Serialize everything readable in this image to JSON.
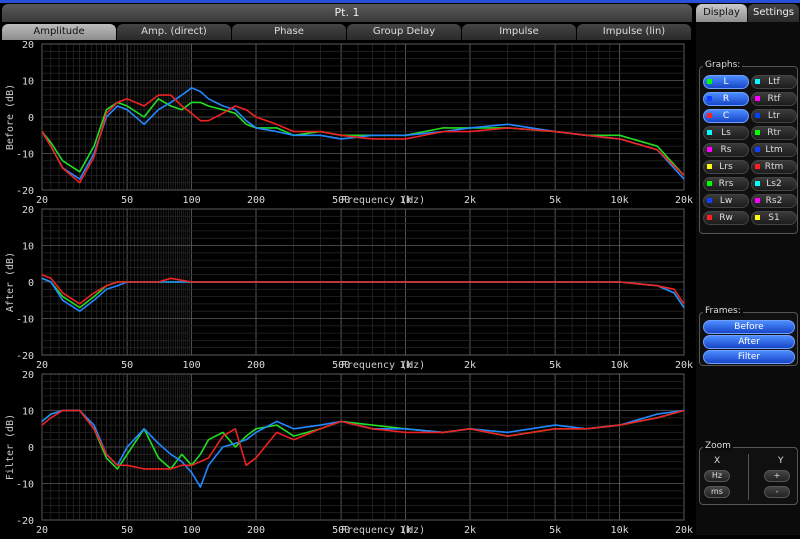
{
  "window": {
    "title": "Pt. 1"
  },
  "tabs": [
    "Amplitude",
    "Amp. (direct)",
    "Phase",
    "Group Delay",
    "Impulse",
    "Impulse (lin)"
  ],
  "active_tab": 0,
  "side_tabs": [
    "Display",
    "Settings"
  ],
  "graphs_panel": {
    "label": "Graphs:",
    "items": [
      {
        "label": "L",
        "color": "#00ff00",
        "on": true
      },
      {
        "label": "Ltf",
        "color": "#00ffff",
        "on": false
      },
      {
        "label": "R",
        "color": "#1040ff",
        "on": true
      },
      {
        "label": "Rtf",
        "color": "#ff00ff",
        "on": false
      },
      {
        "label": "C",
        "color": "#ff2020",
        "on": true
      },
      {
        "label": "Ltr",
        "color": "#0040ff",
        "on": false
      },
      {
        "label": "Ls",
        "color": "#00ffff",
        "on": false
      },
      {
        "label": "Rtr",
        "color": "#00ff00",
        "on": false
      },
      {
        "label": "Rs",
        "color": "#ff00ff",
        "on": false
      },
      {
        "label": "Ltm",
        "color": "#1040ff",
        "on": false
      },
      {
        "label": "Lrs",
        "color": "#ffff00",
        "on": false
      },
      {
        "label": "Rtm",
        "color": "#ff2020",
        "on": false
      },
      {
        "label": "Rrs",
        "color": "#00ff00",
        "on": false
      },
      {
        "label": "Ls2",
        "color": "#00ffff",
        "on": false
      },
      {
        "label": "Lw",
        "color": "#1040ff",
        "on": false
      },
      {
        "label": "Rs2",
        "color": "#ff00ff",
        "on": false
      },
      {
        "label": "Rw",
        "color": "#ff2020",
        "on": false
      },
      {
        "label": "S1",
        "color": "#ffff00",
        "on": false
      }
    ]
  },
  "frames_panel": {
    "label": "Frames:",
    "buttons": [
      "Before",
      "After",
      "Filter"
    ]
  },
  "zoom_panel": {
    "label": "Zoom",
    "x_label": "X",
    "y_label": "Y",
    "x_buttons": [
      "Hz",
      "ms"
    ],
    "y_buttons": [
      "+",
      "-"
    ]
  },
  "chart_data": [
    {
      "type": "line",
      "ylabel": "Before (dB)",
      "xlabel": "Frequency (Hz)",
      "x_scale": "log",
      "xlim": [
        20,
        20000
      ],
      "ylim": [
        -20,
        20
      ],
      "yticks": [
        20,
        10,
        0,
        -10,
        -20
      ],
      "xticks": [
        "20",
        "50",
        "100",
        "200",
        "500",
        "1k",
        "2k",
        "5k",
        "10k",
        "20k"
      ],
      "grid": true,
      "x": [
        20,
        22,
        25,
        30,
        35,
        40,
        45,
        50,
        60,
        70,
        80,
        90,
        100,
        110,
        120,
        140,
        160,
        180,
        200,
        250,
        300,
        400,
        500,
        700,
        1000,
        1500,
        2000,
        3000,
        5000,
        7000,
        10000,
        15000,
        20000
      ],
      "series": [
        {
          "name": "L",
          "color": "#22dd22",
          "values": [
            -4,
            -7,
            -12,
            -15,
            -8,
            2,
            4,
            3,
            0,
            5,
            3,
            2,
            4,
            4,
            3,
            2,
            1,
            -2,
            -3,
            -3,
            -5,
            -4,
            -5,
            -5,
            -5,
            -3,
            -3,
            -3,
            -4,
            -5,
            -5,
            -8,
            -16
          ]
        },
        {
          "name": "R",
          "color": "#2288ff",
          "values": [
            -4,
            -8,
            -14,
            -17,
            -10,
            0,
            3,
            2,
            -2,
            2,
            4,
            6,
            8,
            7,
            5,
            3,
            2,
            -1,
            -3,
            -4,
            -5,
            -5,
            -6,
            -5,
            -5,
            -4,
            -3,
            -2,
            -4,
            -5,
            -6,
            -9,
            -17
          ]
        },
        {
          "name": "C",
          "color": "#ee2222",
          "values": [
            -4,
            -8,
            -14,
            -18,
            -11,
            1,
            4,
            5,
            3,
            6,
            6,
            3,
            1,
            -1,
            -1,
            1,
            3,
            2,
            0,
            -2,
            -4,
            -4,
            -5,
            -6,
            -6,
            -4,
            -4,
            -3,
            -4,
            -5,
            -6,
            -9,
            -16
          ]
        }
      ]
    },
    {
      "type": "line",
      "ylabel": "After (dB)",
      "xlabel": "Frequency (Hz)",
      "x_scale": "log",
      "xlim": [
        20,
        20000
      ],
      "ylim": [
        -20,
        20
      ],
      "yticks": [
        20,
        10,
        0,
        -10,
        -20
      ],
      "xticks": [
        "20",
        "50",
        "100",
        "200",
        "500",
        "1k",
        "2k",
        "5k",
        "10k",
        "20k"
      ],
      "grid": true,
      "x": [
        20,
        22,
        25,
        30,
        35,
        40,
        45,
        50,
        60,
        70,
        80,
        100,
        150,
        200,
        300,
        500,
        1000,
        2000,
        5000,
        10000,
        15000,
        18000,
        20000
      ],
      "series": [
        {
          "name": "L",
          "color": "#22dd22",
          "values": [
            1,
            0,
            -4,
            -7,
            -4,
            -1,
            0,
            0,
            0,
            0,
            0,
            0,
            0,
            0,
            0,
            0,
            0,
            0,
            0,
            0,
            -1,
            -3,
            -7
          ]
        },
        {
          "name": "R",
          "color": "#2288ff",
          "values": [
            1,
            0,
            -5,
            -8,
            -5,
            -2,
            -1,
            0,
            0,
            0,
            0,
            0,
            0,
            0,
            0,
            0,
            0,
            0,
            0,
            0,
            -1,
            -3,
            -7
          ]
        },
        {
          "name": "C",
          "color": "#ee2222",
          "values": [
            2,
            1,
            -3,
            -6,
            -3,
            -1,
            0,
            0,
            0,
            0,
            1,
            0,
            0,
            0,
            0,
            0,
            0,
            0,
            0,
            0,
            -1,
            -2,
            -6
          ]
        }
      ]
    },
    {
      "type": "line",
      "ylabel": "Filter (dB)",
      "xlabel": "Frequency (Hz)",
      "x_scale": "log",
      "xlim": [
        20,
        20000
      ],
      "ylim": [
        -20,
        20
      ],
      "yticks": [
        20,
        10,
        0,
        -10,
        -20
      ],
      "xticks": [
        "20",
        "50",
        "100",
        "200",
        "500",
        "1k",
        "2k",
        "5k",
        "10k",
        "20k"
      ],
      "grid": true,
      "x": [
        20,
        22,
        25,
        30,
        35,
        40,
        45,
        50,
        60,
        70,
        80,
        90,
        100,
        110,
        120,
        140,
        160,
        180,
        200,
        250,
        300,
        400,
        500,
        700,
        1000,
        1500,
        2000,
        3000,
        5000,
        7000,
        10000,
        15000,
        20000
      ],
      "series": [
        {
          "name": "L",
          "color": "#22dd22",
          "values": [
            7,
            9,
            10,
            10,
            5,
            -3,
            -6,
            -2,
            5,
            -3,
            -6,
            -2,
            -5,
            -2,
            2,
            4,
            0,
            3,
            5,
            6,
            3,
            5,
            7,
            6,
            5,
            4,
            5,
            3,
            5,
            5,
            6,
            8,
            10
          ]
        },
        {
          "name": "R",
          "color": "#2288ff",
          "values": [
            7,
            9,
            10,
            10,
            6,
            -2,
            -5,
            0,
            5,
            1,
            -2,
            -4,
            -7,
            -11,
            -5,
            0,
            1,
            2,
            4,
            7,
            5,
            6,
            7,
            5,
            5,
            4,
            5,
            4,
            6,
            5,
            6,
            9,
            10
          ]
        },
        {
          "name": "C",
          "color": "#ee2222",
          "values": [
            6,
            8,
            10,
            10,
            5,
            -2,
            -5,
            -5,
            -6,
            -6,
            -6,
            -5,
            -5,
            -4,
            -3,
            3,
            5,
            -5,
            -3,
            4,
            2,
            5,
            7,
            5,
            4,
            4,
            5,
            3,
            5,
            5,
            6,
            8,
            10
          ]
        }
      ]
    }
  ]
}
